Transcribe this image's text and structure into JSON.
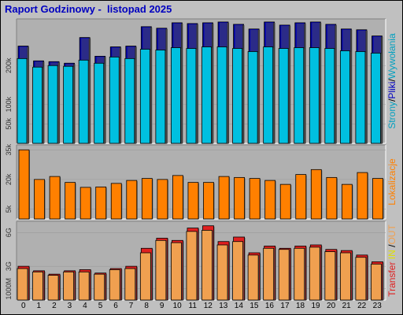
{
  "title": "Raport Godzinowy -  listopad 2025",
  "colors": {
    "strony": "#0000ff",
    "pliki": "#0000aa",
    "wywolania": "#00c0e0",
    "lokalizacje": "#ff8000",
    "transfer": "#e02020",
    "in": "#e0e000",
    "out": "#f0a050",
    "bg": "#c0c0c0",
    "plot_bg": "#b0b0b0"
  },
  "chart_data": [
    {
      "type": "bar",
      "panel": "top",
      "categories": [
        "0",
        "1",
        "2",
        "3",
        "4",
        "5",
        "6",
        "7",
        "8",
        "9",
        "10",
        "11",
        "12",
        "13",
        "14",
        "15",
        "16",
        "17",
        "18",
        "19",
        "20",
        "21",
        "22",
        "23"
      ],
      "series": [
        {
          "name": "Strony",
          "values": [
            250000,
            212000,
            210000,
            206000,
            272000,
            224000,
            248000,
            250000,
            300000,
            296000,
            310000,
            308000,
            310000,
            312000,
            306000,
            294000,
            312000,
            304000,
            310000,
            312000,
            306000,
            294000,
            292000,
            276000
          ]
        },
        {
          "name": "Pliki",
          "values": [
            250000,
            212000,
            210000,
            206000,
            272000,
            224000,
            248000,
            250000,
            300000,
            296000,
            310000,
            308000,
            310000,
            312000,
            306000,
            294000,
            312000,
            304000,
            310000,
            312000,
            306000,
            294000,
            292000,
            276000
          ]
        },
        {
          "name": "Wywołania",
          "values": [
            218000,
            196000,
            200000,
            198000,
            214000,
            206000,
            222000,
            218000,
            242000,
            240000,
            246000,
            244000,
            248000,
            248000,
            244000,
            236000,
            248000,
            244000,
            246000,
            246000,
            244000,
            238000,
            236000,
            232000
          ]
        }
      ],
      "y_ticks": [
        {
          "v": 50000,
          "label": "50k"
        },
        {
          "v": 100000,
          "label": "100k"
        },
        {
          "v": 200000,
          "label": "200k"
        }
      ],
      "ylim": [
        0,
        320000
      ],
      "right_labels": [
        {
          "text": "Strony",
          "color": "#00a0c0"
        },
        {
          "text": "/",
          "color": "#000000"
        },
        {
          "text": "Pliki",
          "color": "#0000c0"
        },
        {
          "text": "/",
          "color": "#000000"
        },
        {
          "text": "Wywołania",
          "color": "#00a0c0"
        }
      ]
    },
    {
      "type": "bar",
      "panel": "middle",
      "categories": [
        "0",
        "1",
        "2",
        "3",
        "4",
        "5",
        "6",
        "7",
        "8",
        "9",
        "10",
        "11",
        "12",
        "13",
        "14",
        "15",
        "16",
        "17",
        "18",
        "19",
        "20",
        "21",
        "22",
        "23"
      ],
      "series": [
        {
          "name": "Lokalizacje",
          "values": [
            35000,
            20000,
            21500,
            18500,
            16000,
            16200,
            18000,
            19500,
            20500,
            20000,
            22000,
            18500,
            18500,
            21500,
            21000,
            20500,
            19500,
            17500,
            22500,
            25000,
            21000,
            17500,
            23500,
            20500
          ]
        }
      ],
      "y_ticks": [
        {
          "v": 5000,
          "label": "5k"
        },
        {
          "v": 20000,
          "label": "20k"
        },
        {
          "v": 35000,
          "label": "35k"
        }
      ],
      "ylim": [
        0,
        37500
      ],
      "right_labels": [
        {
          "text": "Lokalizacje",
          "color": "#ff8000"
        }
      ]
    },
    {
      "type": "bar",
      "panel": "bottom",
      "categories": [
        "0",
        "1",
        "2",
        "3",
        "4",
        "5",
        "6",
        "7",
        "8",
        "9",
        "10",
        "11",
        "12",
        "13",
        "14",
        "15",
        "16",
        "17",
        "18",
        "19",
        "20",
        "21",
        "22",
        "23"
      ],
      "series": [
        {
          "name": "Transfer",
          "values": [
            3.0,
            2.6,
            2.3,
            2.6,
            2.7,
            2.4,
            2.8,
            3.0,
            4.6,
            5.5,
            5.3,
            6.4,
            6.6,
            5.2,
            5.6,
            4.2,
            4.8,
            4.6,
            4.8,
            4.9,
            4.5,
            4.4,
            4.0,
            3.4
          ]
        },
        {
          "name": "OUT",
          "values": [
            2.8,
            2.5,
            2.2,
            2.5,
            2.5,
            2.3,
            2.7,
            2.8,
            4.2,
            5.3,
            5.1,
            6.1,
            6.2,
            4.9,
            5.2,
            4.0,
            4.6,
            4.5,
            4.6,
            4.7,
            4.3,
            4.2,
            3.8,
            3.2
          ]
        }
      ],
      "y_ticks": [
        {
          "v": 1.0,
          "label": "1000M"
        },
        {
          "v": 3.0,
          "label": "3G"
        },
        {
          "v": 6.0,
          "label": "6G"
        }
      ],
      "ylim": [
        0,
        7.0
      ],
      "right_labels": [
        {
          "text": "Transfer",
          "color": "#e02020"
        },
        {
          "text": " ",
          "color": "#000000"
        },
        {
          "text": "IN",
          "color": "#e0e000"
        },
        {
          "text": " ",
          "color": "#000000"
        },
        {
          "text": "/",
          "color": "#000000"
        },
        {
          "text": "OUT",
          "color": "#f0a050"
        }
      ]
    }
  ]
}
